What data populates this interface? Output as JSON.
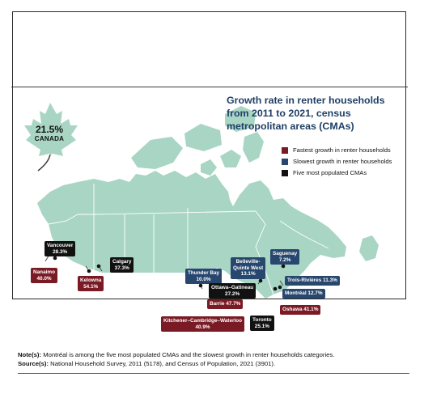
{
  "title": "Growth rate in renter households from 2011 to 2021, census metropolitan areas (CMAs)",
  "canada": {
    "value": "21.5%",
    "name": "CANADA"
  },
  "legend": [
    {
      "label": "Fastest growth in renter households",
      "color": "#7a1a24"
    },
    {
      "label": "Slowest growth in renter households",
      "color": "#27476e"
    },
    {
      "label": "Five most populated CMAs",
      "color": "#111111"
    }
  ],
  "cmas": [
    {
      "name": "Vancouver",
      "value": "28.3%",
      "category": "most-populated"
    },
    {
      "name": "Nanaimo",
      "value": "40.0%",
      "category": "fastest"
    },
    {
      "name": "Kelowna",
      "value": "54.1%",
      "category": "fastest"
    },
    {
      "name": "Calgary",
      "value": "37.3%",
      "category": "most-populated"
    },
    {
      "name": "Thunder Bay",
      "value": "10.0%",
      "category": "slowest"
    },
    {
      "name": "Belleville-Quinte West",
      "value": "13.1%",
      "category": "slowest"
    },
    {
      "name": "Saguenay",
      "value": "7.2%",
      "category": "slowest"
    },
    {
      "name": "Trois-Rivières",
      "value": "11.3%",
      "category": "slowest"
    },
    {
      "name": "Montréal",
      "value": "12.7%",
      "category": "slowest"
    },
    {
      "name": "Ottawa–Gatineau",
      "value": "27.2%",
      "category": "most-populated"
    },
    {
      "name": "Barrie",
      "value": "47.7%",
      "category": "fastest"
    },
    {
      "name": "Oshawa",
      "value": "41.1%",
      "category": "fastest"
    },
    {
      "name": "Kitchener–Cambridge–Waterloo",
      "value": "40.9%",
      "category": "fastest"
    },
    {
      "name": "Toronto",
      "value": "25.1%",
      "category": "most-populated"
    }
  ],
  "notes": {
    "note_label": "Note(s):",
    "note_text": "Montréal is among the five most populated CMAs and the slowest growth in renter households categories.",
    "source_label": "Source(s):",
    "source_text": "National Household Survey, 2011 (5178), and Census of Population, 2021 (3901)."
  },
  "colors": {
    "land": "#a9d5c5",
    "border": "#ffffff",
    "fastest": "#7a1a24",
    "slowest": "#27476e",
    "populated": "#111111"
  }
}
